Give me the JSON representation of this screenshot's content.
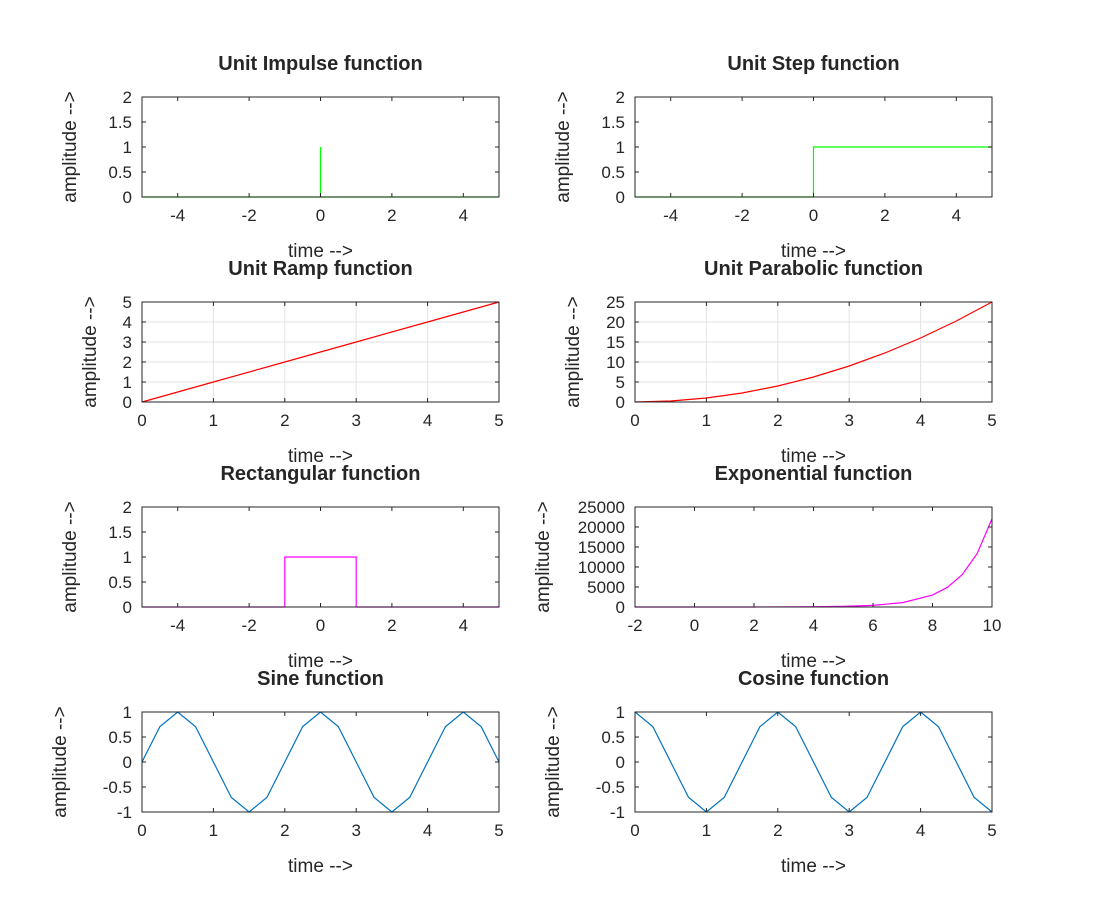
{
  "figure": {
    "background": "#ffffff"
  },
  "chart_data": [
    {
      "type": "line",
      "title": "Unit Impulse function",
      "xlabel": "time -->",
      "ylabel": "amplitude -->",
      "xlim": [
        -5,
        5
      ],
      "ylim": [
        0,
        2
      ],
      "xticks": [
        -4,
        -2,
        0,
        2,
        4
      ],
      "yticks": [
        0,
        0.5,
        1,
        1.5,
        2
      ],
      "grid": false,
      "color": "#00ff00",
      "series": [
        {
          "x": [
            -5,
            0,
            0,
            0,
            5
          ],
          "y": [
            0,
            0,
            1,
            0,
            0
          ]
        }
      ]
    },
    {
      "type": "line",
      "title": "Unit Step function",
      "xlabel": "time -->",
      "ylabel": "amplitude -->",
      "xlim": [
        -5,
        5
      ],
      "ylim": [
        0,
        2
      ],
      "xticks": [
        -4,
        -2,
        0,
        2,
        4
      ],
      "yticks": [
        0,
        0.5,
        1,
        1.5,
        2
      ],
      "grid": false,
      "color": "#00ff00",
      "series": [
        {
          "x": [
            -5,
            0,
            0,
            5
          ],
          "y": [
            0,
            0,
            1,
            1
          ]
        }
      ]
    },
    {
      "type": "line",
      "title": "Unit Ramp function",
      "xlabel": "time -->",
      "ylabel": "amplitude -->",
      "xlim": [
        0,
        5
      ],
      "ylim": [
        0,
        5
      ],
      "xticks": [
        0,
        1,
        2,
        3,
        4,
        5
      ],
      "yticks": [
        0,
        1,
        2,
        3,
        4,
        5
      ],
      "grid": true,
      "color": "#ff0000",
      "series": [
        {
          "x": [
            0,
            1,
            2,
            3,
            4,
            5
          ],
          "y": [
            0,
            1,
            2,
            3,
            4,
            5
          ]
        }
      ]
    },
    {
      "type": "line",
      "title": "Unit Parabolic function",
      "xlabel": "time -->",
      "ylabel": "amplitude -->",
      "xlim": [
        0,
        5
      ],
      "ylim": [
        0,
        25
      ],
      "xticks": [
        0,
        1,
        2,
        3,
        4,
        5
      ],
      "yticks": [
        0,
        5,
        10,
        15,
        20,
        25
      ],
      "grid": true,
      "color": "#ff0000",
      "series": [
        {
          "x": [
            0,
            0.5,
            1,
            1.5,
            2,
            2.5,
            3,
            3.5,
            4,
            4.5,
            5
          ],
          "y": [
            0,
            0.25,
            1,
            2.25,
            4,
            6.25,
            9,
            12.25,
            16,
            20.25,
            25
          ]
        }
      ]
    },
    {
      "type": "line",
      "title": "Rectangular function",
      "xlabel": "time -->",
      "ylabel": "amplitude -->",
      "xlim": [
        -5,
        5
      ],
      "ylim": [
        0,
        2
      ],
      "xticks": [
        -4,
        -2,
        0,
        2,
        4
      ],
      "yticks": [
        0,
        0.5,
        1,
        1.5,
        2
      ],
      "grid": false,
      "color": "#ff00ff",
      "series": [
        {
          "x": [
            -5,
            -1,
            -1,
            1,
            1,
            5
          ],
          "y": [
            0,
            0,
            1,
            1,
            0,
            0
          ]
        }
      ]
    },
    {
      "type": "line",
      "title": "Exponential function",
      "xlabel": "time -->",
      "ylabel": "amplitude -->",
      "xlim": [
        -2,
        10
      ],
      "ylim": [
        0,
        25000
      ],
      "xticks": [
        -2,
        0,
        2,
        4,
        6,
        8,
        10
      ],
      "yticks": [
        0,
        5000,
        10000,
        15000,
        20000,
        25000
      ],
      "grid": false,
      "color": "#ff00ff",
      "series": [
        {
          "x": [
            -2,
            0,
            2,
            4,
            5,
            6,
            7,
            8,
            8.5,
            9,
            9.5,
            10
          ],
          "y": [
            0.14,
            1,
            7.4,
            54.6,
            148.4,
            403.4,
            1096.6,
            2981,
            4914.8,
            8103.1,
            13359.7,
            22026.5
          ]
        }
      ]
    },
    {
      "type": "line",
      "title": "Sine function",
      "xlabel": "time -->",
      "ylabel": "amplitude -->",
      "xlim": [
        0,
        5
      ],
      "ylim": [
        -1,
        1
      ],
      "xticks": [
        0,
        1,
        2,
        3,
        4,
        5
      ],
      "yticks": [
        -1,
        -0.5,
        0,
        0.5,
        1
      ],
      "grid": false,
      "color": "#0072bd",
      "series": [
        {
          "x": [
            0,
            0.25,
            0.5,
            0.75,
            1,
            1.25,
            1.5,
            1.75,
            2,
            2.25,
            2.5,
            2.75,
            3,
            3.25,
            3.5,
            3.75,
            4,
            4.25,
            4.5,
            4.75,
            5
          ],
          "y": [
            0,
            0.707,
            1,
            0.707,
            0,
            -0.707,
            -1,
            -0.707,
            0,
            0.707,
            1,
            0.707,
            0,
            -0.707,
            -1,
            -0.707,
            0,
            0.707,
            1,
            0.707,
            0
          ]
        }
      ]
    },
    {
      "type": "line",
      "title": "Cosine function",
      "xlabel": "time -->",
      "ylabel": "amplitude -->",
      "xlim": [
        0,
        5
      ],
      "ylim": [
        -1,
        1
      ],
      "xticks": [
        0,
        1,
        2,
        3,
        4,
        5
      ],
      "yticks": [
        -1,
        -0.5,
        0,
        0.5,
        1
      ],
      "grid": false,
      "color": "#0072bd",
      "series": [
        {
          "x": [
            0,
            0.25,
            0.5,
            0.75,
            1,
            1.25,
            1.5,
            1.75,
            2,
            2.25,
            2.5,
            2.75,
            3,
            3.25,
            3.5,
            3.75,
            4,
            4.25,
            4.5,
            4.75,
            5
          ],
          "y": [
            1,
            0.707,
            0,
            -0.707,
            -1,
            -0.707,
            0,
            0.707,
            1,
            0.707,
            0,
            -0.707,
            -1,
            -0.707,
            0,
            0.707,
            1,
            0.707,
            0,
            -0.707,
            -1
          ]
        }
      ]
    }
  ]
}
